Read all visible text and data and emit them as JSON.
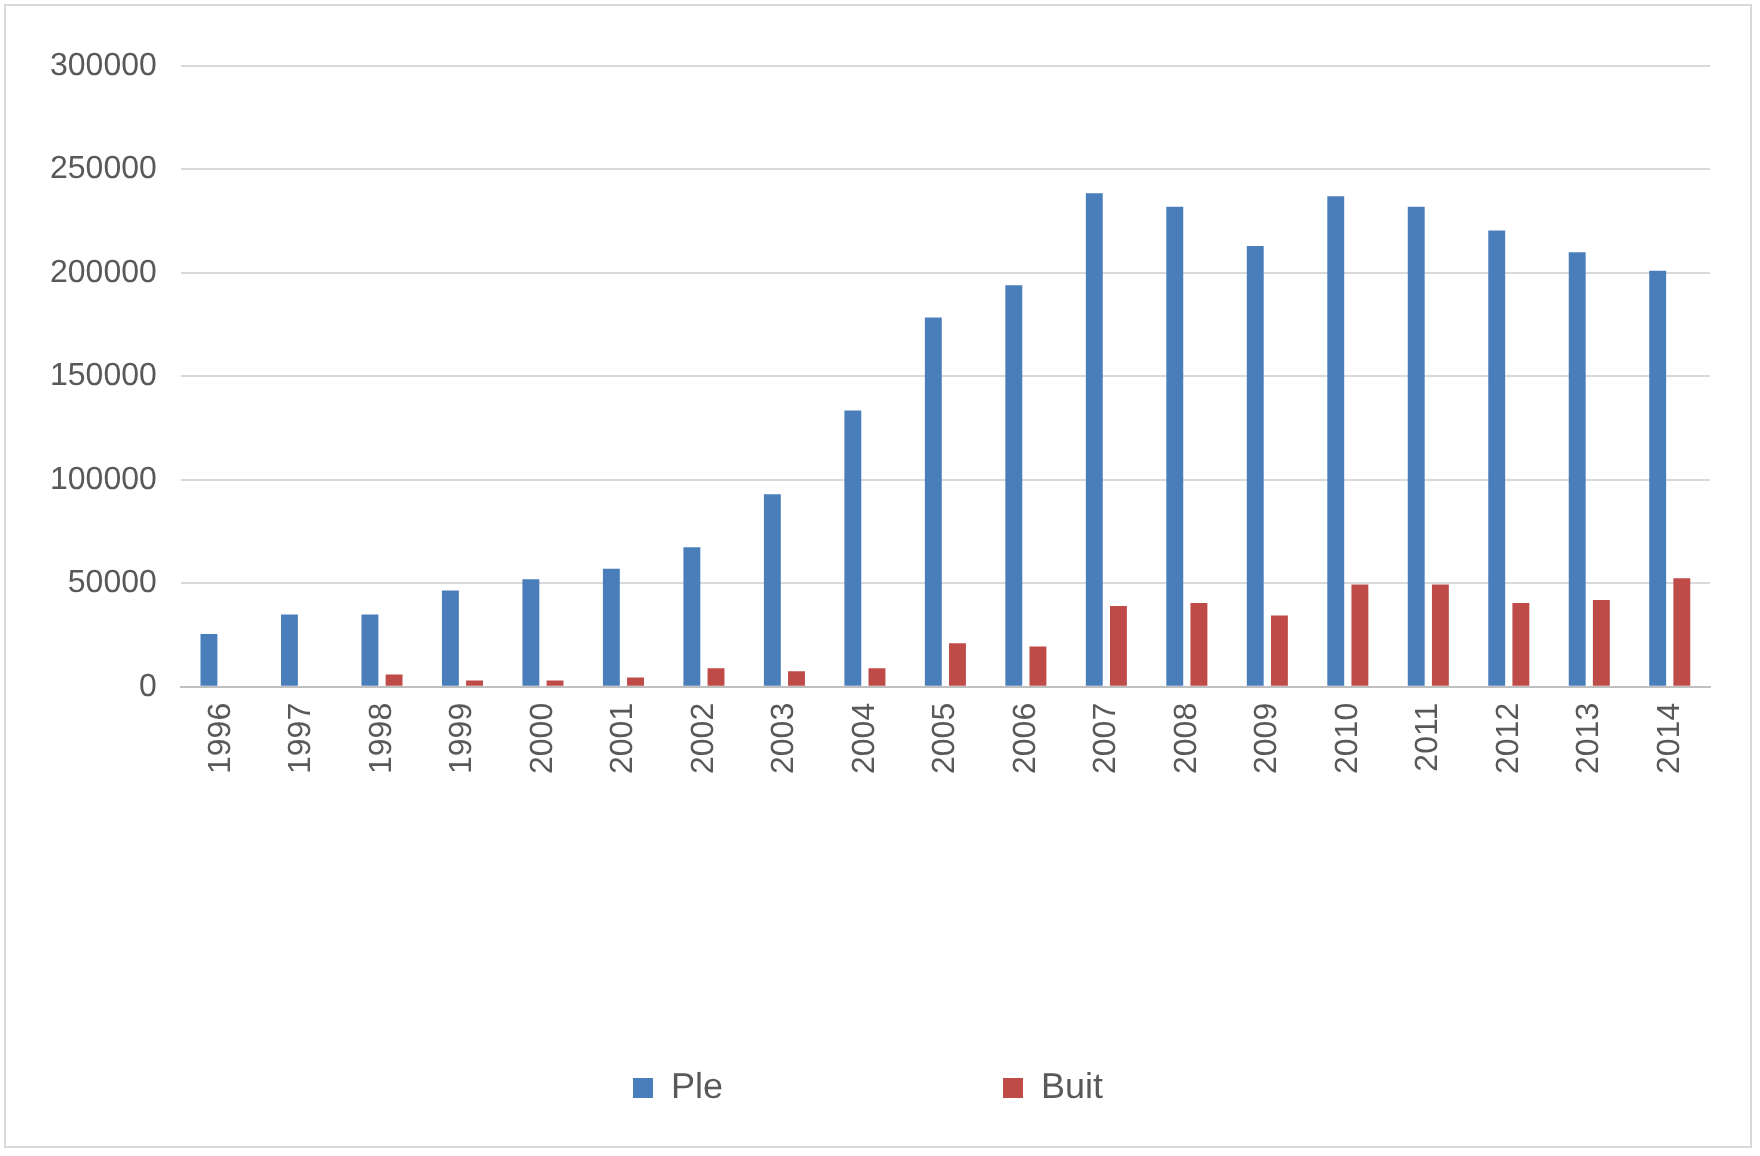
{
  "chart_data": {
    "type": "bar",
    "categories": [
      "1996",
      "1997",
      "1998",
      "1999",
      "2000",
      "2001",
      "2002",
      "2003",
      "2004",
      "2005",
      "2006",
      "2007",
      "2008",
      "2009",
      "2010",
      "2011",
      "2012",
      "2013",
      "2014"
    ],
    "series": [
      {
        "name": "Ple",
        "color": "#4a7ebb",
        "values": [
          25500,
          35000,
          35000,
          46500,
          52000,
          57000,
          67500,
          93000,
          133500,
          178500,
          194000,
          238500,
          232000,
          213000,
          237000,
          232000,
          220500,
          210000,
          201000
        ]
      },
      {
        "name": "Buit",
        "color": "#be4b48",
        "values": [
          null,
          null,
          6000,
          3000,
          3000,
          4500,
          9000,
          7500,
          9000,
          21000,
          19500,
          39000,
          40500,
          34500,
          49500,
          49500,
          40500,
          42000,
          52500
        ]
      }
    ],
    "ylim": [
      0,
      300000
    ],
    "yticks": [
      0,
      50000,
      100000,
      150000,
      200000,
      250000,
      300000
    ],
    "grid": "y",
    "legend": "bottom"
  }
}
